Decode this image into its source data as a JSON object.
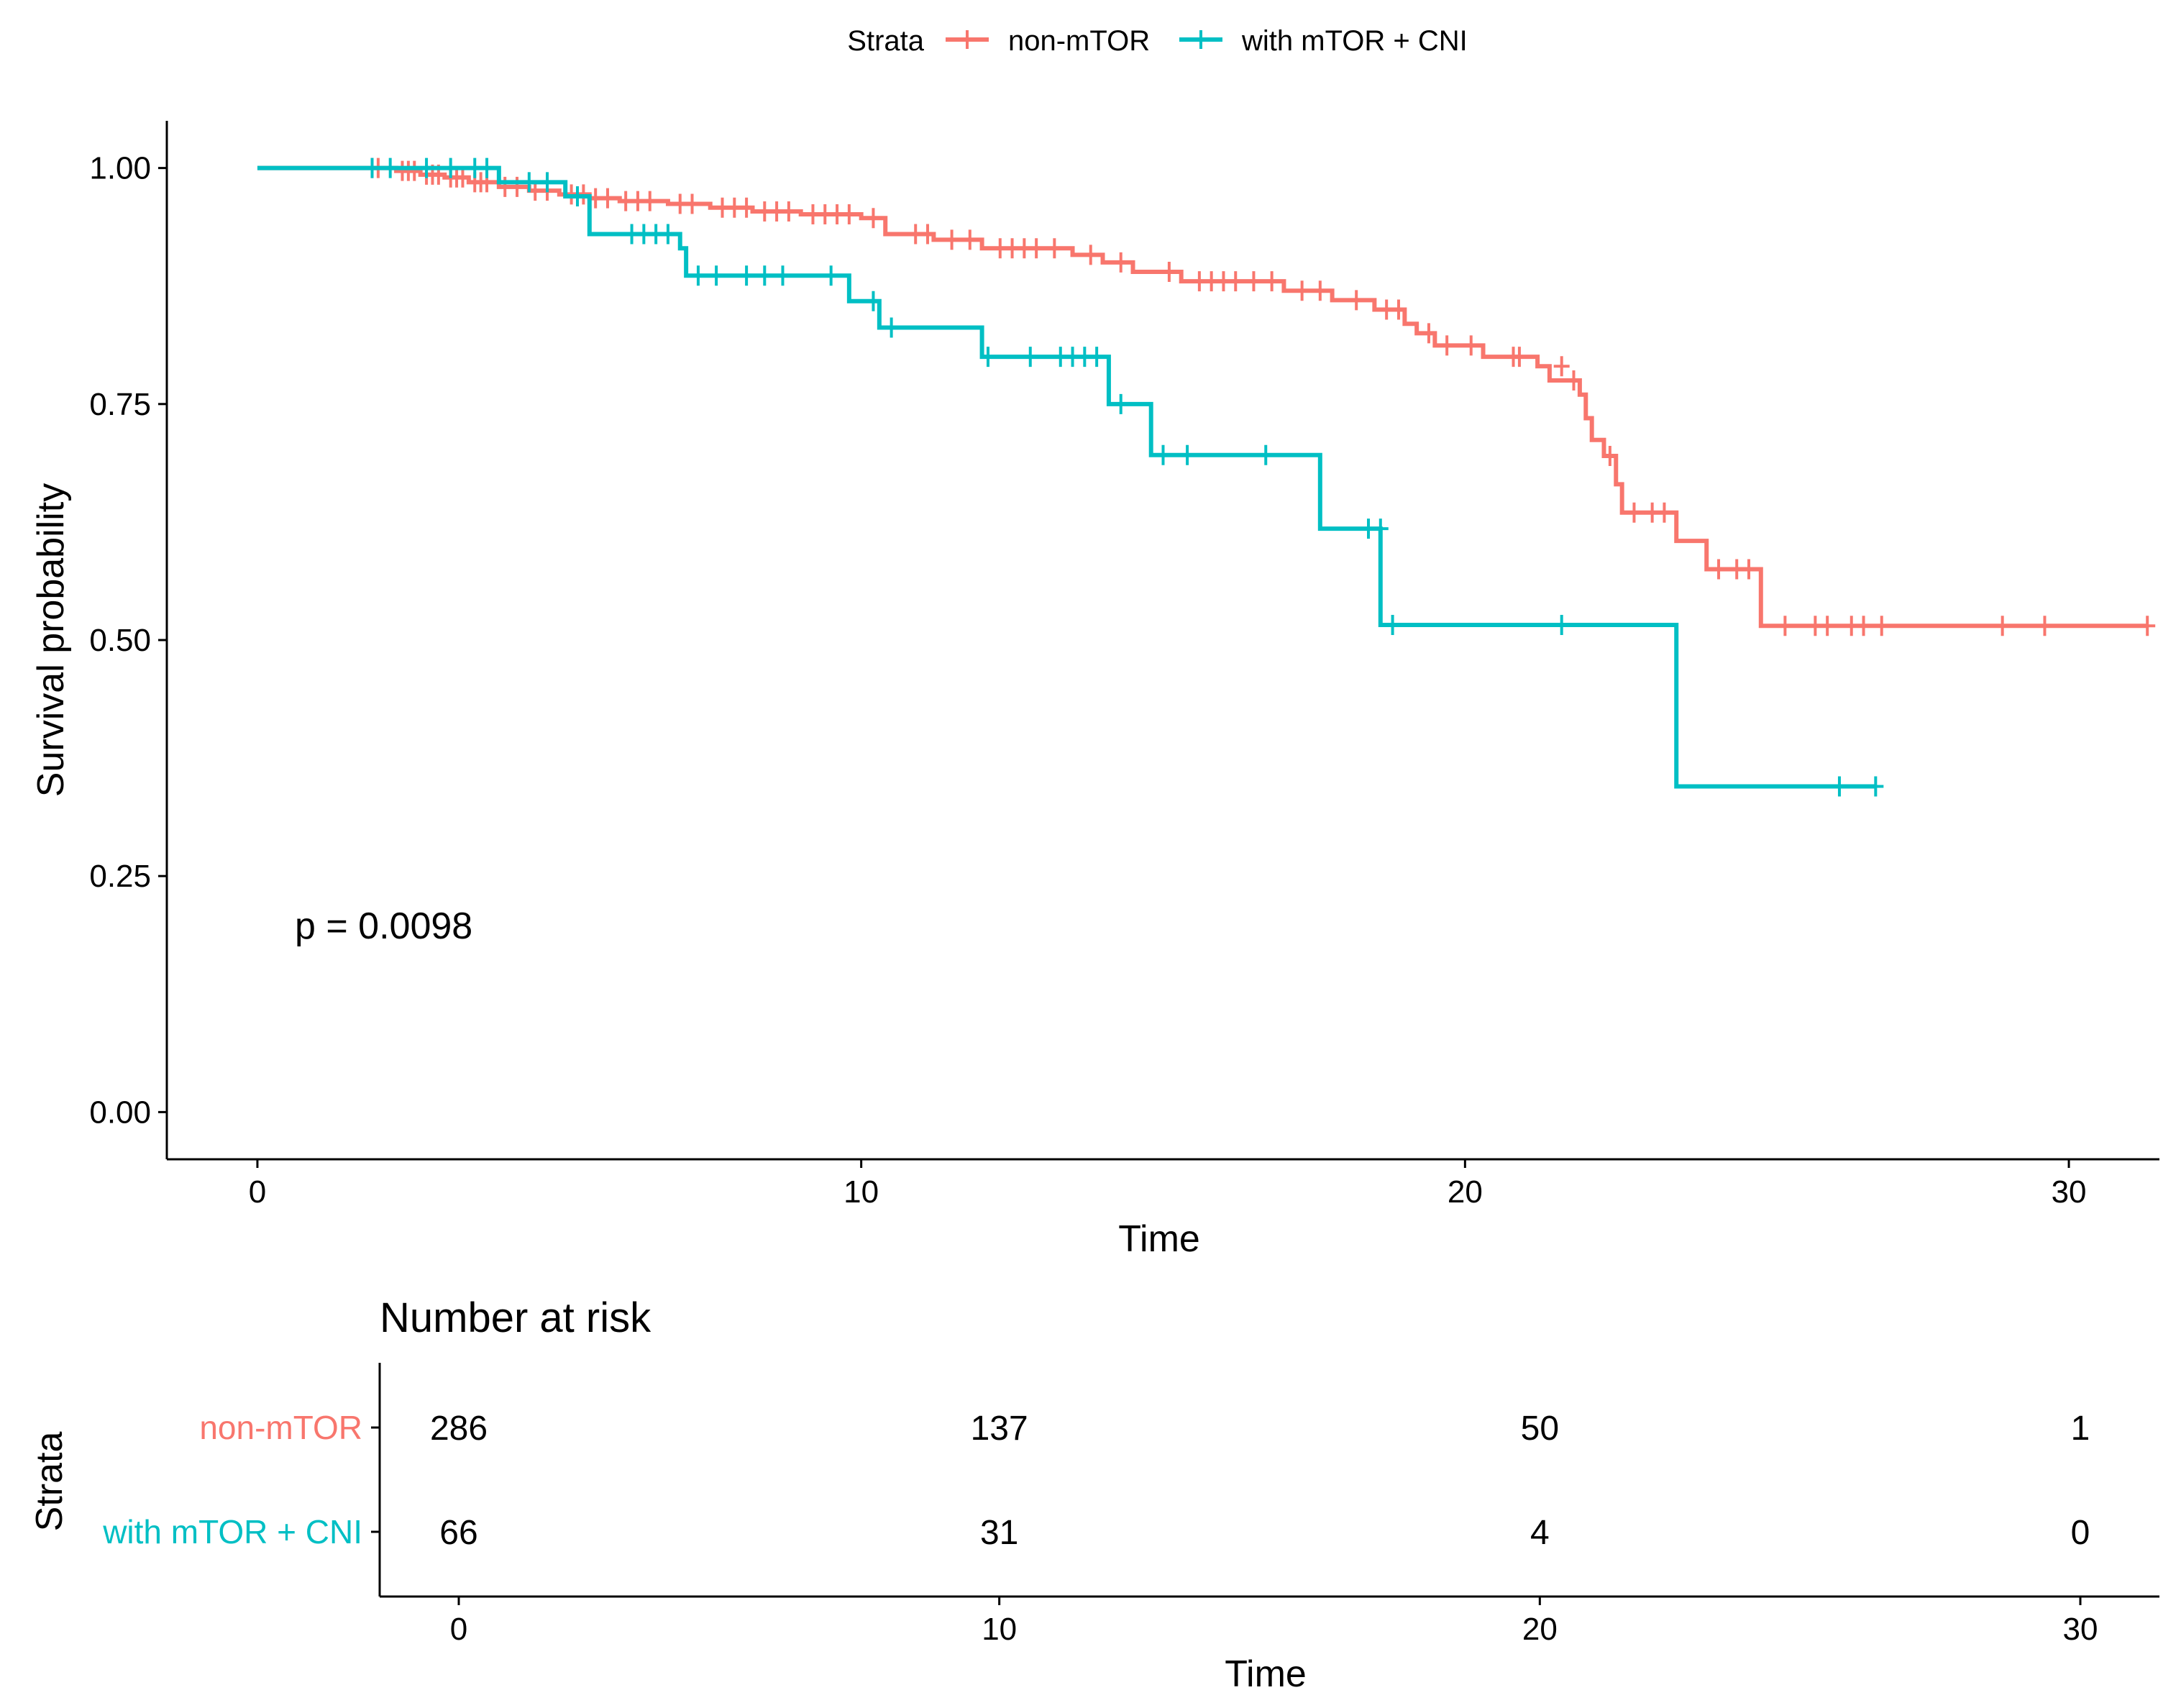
{
  "chart_data": {
    "type": "line",
    "legend": {
      "title": "Strata",
      "position": "top",
      "entries": [
        "non-mTOR",
        "with mTOR + CNI"
      ]
    },
    "colors": {
      "non_mtor": "#F8766D",
      "mtor_cni": "#00BFC4",
      "axis": "#000000",
      "text": "#000000"
    },
    "survival_plot": {
      "xlabel": "Time",
      "ylabel": "Survival probability",
      "xlim": [
        -1.5,
        31.5
      ],
      "ylim": [
        -0.05,
        1.05
      ],
      "x_ticks": [
        0,
        10,
        20,
        30
      ],
      "y_ticks": [
        0.0,
        0.25,
        0.5,
        0.75,
        1.0
      ],
      "y_tick_labels": [
        "0.00",
        "0.25",
        "0.50",
        "0.75",
        "1.00"
      ],
      "grid": false,
      "annotation": "p = 0.0098",
      "series": [
        {
          "name": "non-mTOR",
          "color": "#F8766D",
          "steps": [
            [
              0,
              1.0
            ],
            [
              2.3,
              0.997
            ],
            [
              2.7,
              0.993
            ],
            [
              3.1,
              0.99
            ],
            [
              3.5,
              0.985
            ],
            [
              4.0,
              0.98
            ],
            [
              4.5,
              0.976
            ],
            [
              5.0,
              0.972
            ],
            [
              5.5,
              0.968
            ],
            [
              6.0,
              0.965
            ],
            [
              6.8,
              0.962
            ],
            [
              7.5,
              0.958
            ],
            [
              8.2,
              0.954
            ],
            [
              9.0,
              0.951
            ],
            [
              10.0,
              0.947
            ],
            [
              10.4,
              0.93
            ],
            [
              11.2,
              0.924
            ],
            [
              12.0,
              0.915
            ],
            [
              13.5,
              0.908
            ],
            [
              14.0,
              0.9
            ],
            [
              14.5,
              0.89
            ],
            [
              15.3,
              0.88
            ],
            [
              17.0,
              0.87
            ],
            [
              17.8,
              0.86
            ],
            [
              18.5,
              0.85
            ],
            [
              19.0,
              0.835
            ],
            [
              19.2,
              0.825
            ],
            [
              19.5,
              0.812
            ],
            [
              20.3,
              0.8
            ],
            [
              21.2,
              0.79
            ],
            [
              21.4,
              0.775
            ],
            [
              21.9,
              0.76
            ],
            [
              22.0,
              0.735
            ],
            [
              22.1,
              0.712
            ],
            [
              22.3,
              0.695
            ],
            [
              22.5,
              0.665
            ],
            [
              22.6,
              0.635
            ],
            [
              23.5,
              0.605
            ],
            [
              24.0,
              0.575
            ],
            [
              24.9,
              0.515
            ]
          ],
          "end": 31.3,
          "censors": [
            [
              1.9,
              1.0
            ],
            [
              2.0,
              1.0
            ],
            [
              2.4,
              0.997
            ],
            [
              2.5,
              0.997
            ],
            [
              2.6,
              0.997
            ],
            [
              2.8,
              0.993
            ],
            [
              2.9,
              0.993
            ],
            [
              3.0,
              0.993
            ],
            [
              3.2,
              0.99
            ],
            [
              3.3,
              0.99
            ],
            [
              3.4,
              0.99
            ],
            [
              3.6,
              0.985
            ],
            [
              3.7,
              0.985
            ],
            [
              3.8,
              0.985
            ],
            [
              4.1,
              0.98
            ],
            [
              4.3,
              0.98
            ],
            [
              4.6,
              0.976
            ],
            [
              4.8,
              0.976
            ],
            [
              5.2,
              0.972
            ],
            [
              5.4,
              0.972
            ],
            [
              5.6,
              0.968
            ],
            [
              5.8,
              0.968
            ],
            [
              6.1,
              0.965
            ],
            [
              6.3,
              0.965
            ],
            [
              6.5,
              0.965
            ],
            [
              7.0,
              0.962
            ],
            [
              7.2,
              0.962
            ],
            [
              7.7,
              0.958
            ],
            [
              7.9,
              0.958
            ],
            [
              8.1,
              0.958
            ],
            [
              8.4,
              0.954
            ],
            [
              8.6,
              0.954
            ],
            [
              8.8,
              0.954
            ],
            [
              9.2,
              0.951
            ],
            [
              9.4,
              0.951
            ],
            [
              9.6,
              0.951
            ],
            [
              9.8,
              0.951
            ],
            [
              10.2,
              0.947
            ],
            [
              10.9,
              0.93
            ],
            [
              11.1,
              0.93
            ],
            [
              11.5,
              0.924
            ],
            [
              11.8,
              0.924
            ],
            [
              12.3,
              0.915
            ],
            [
              12.5,
              0.915
            ],
            [
              12.7,
              0.915
            ],
            [
              12.9,
              0.915
            ],
            [
              13.2,
              0.915
            ],
            [
              13.8,
              0.908
            ],
            [
              14.3,
              0.9
            ],
            [
              15.1,
              0.89
            ],
            [
              15.6,
              0.88
            ],
            [
              15.8,
              0.88
            ],
            [
              16.0,
              0.88
            ],
            [
              16.2,
              0.88
            ],
            [
              16.5,
              0.88
            ],
            [
              16.8,
              0.88
            ],
            [
              17.3,
              0.87
            ],
            [
              17.6,
              0.87
            ],
            [
              18.2,
              0.86
            ],
            [
              18.7,
              0.85
            ],
            [
              18.9,
              0.85
            ],
            [
              19.4,
              0.825
            ],
            [
              19.7,
              0.812
            ],
            [
              20.1,
              0.812
            ],
            [
              20.8,
              0.8
            ],
            [
              20.9,
              0.8
            ],
            [
              21.6,
              0.79
            ],
            [
              21.8,
              0.775
            ],
            [
              22.4,
              0.695
            ],
            [
              22.8,
              0.635
            ],
            [
              23.1,
              0.635
            ],
            [
              23.3,
              0.635
            ],
            [
              24.2,
              0.575
            ],
            [
              24.5,
              0.575
            ],
            [
              24.7,
              0.575
            ],
            [
              25.3,
              0.515
            ],
            [
              25.8,
              0.515
            ],
            [
              26.0,
              0.515
            ],
            [
              26.4,
              0.515
            ],
            [
              26.6,
              0.515
            ],
            [
              26.9,
              0.515
            ],
            [
              28.9,
              0.515
            ],
            [
              29.6,
              0.515
            ],
            [
              31.3,
              0.515
            ]
          ]
        },
        {
          "name": "with mTOR + CNI",
          "color": "#00BFC4",
          "steps": [
            [
              0,
              1.0
            ],
            [
              4.0,
              0.985
            ],
            [
              5.1,
              0.97
            ],
            [
              5.5,
              0.93
            ],
            [
              7.0,
              0.915
            ],
            [
              7.1,
              0.886
            ],
            [
              9.8,
              0.859
            ],
            [
              10.3,
              0.831
            ],
            [
              12.0,
              0.8
            ],
            [
              14.1,
              0.75
            ],
            [
              14.8,
              0.696
            ],
            [
              17.6,
              0.618
            ],
            [
              18.6,
              0.516
            ],
            [
              23.5,
              0.345
            ]
          ],
          "end": 26.8,
          "censors": [
            [
              1.9,
              1.0
            ],
            [
              2.2,
              1.0
            ],
            [
              2.8,
              1.0
            ],
            [
              3.2,
              1.0
            ],
            [
              3.6,
              1.0
            ],
            [
              3.8,
              1.0
            ],
            [
              4.5,
              0.985
            ],
            [
              4.8,
              0.985
            ],
            [
              5.3,
              0.97
            ],
            [
              6.2,
              0.93
            ],
            [
              6.4,
              0.93
            ],
            [
              6.6,
              0.93
            ],
            [
              6.8,
              0.93
            ],
            [
              7.3,
              0.886
            ],
            [
              7.6,
              0.886
            ],
            [
              8.1,
              0.886
            ],
            [
              8.4,
              0.886
            ],
            [
              8.7,
              0.886
            ],
            [
              9.5,
              0.886
            ],
            [
              10.2,
              0.859
            ],
            [
              10.5,
              0.831
            ],
            [
              12.1,
              0.8
            ],
            [
              12.8,
              0.8
            ],
            [
              13.3,
              0.8
            ],
            [
              13.5,
              0.8
            ],
            [
              13.7,
              0.8
            ],
            [
              13.9,
              0.8
            ],
            [
              14.3,
              0.75
            ],
            [
              15.0,
              0.696
            ],
            [
              15.4,
              0.696
            ],
            [
              16.7,
              0.696
            ],
            [
              18.4,
              0.618
            ],
            [
              18.6,
              0.618
            ],
            [
              18.8,
              0.516
            ],
            [
              21.6,
              0.516
            ],
            [
              26.2,
              0.345
            ],
            [
              26.8,
              0.345
            ]
          ]
        }
      ]
    },
    "risk_table": {
      "title": "Number at risk",
      "ylabel": "Strata",
      "xlabel": "Time",
      "x_ticks": [
        0,
        10,
        20,
        30
      ],
      "rows": [
        {
          "name": "non-mTOR",
          "color": "#F8766D",
          "values": [
            286,
            137,
            50,
            1
          ]
        },
        {
          "name": "with mTOR + CNI",
          "color": "#00BFC4",
          "values": [
            66,
            31,
            4,
            0
          ]
        }
      ]
    }
  }
}
